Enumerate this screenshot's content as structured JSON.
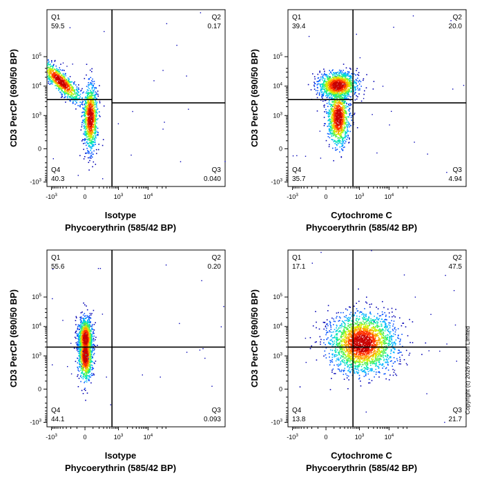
{
  "copyright": "Copyright (c) 2026 Abcam Limited",
  "colors": {
    "density": [
      "#0000b4",
      "#0050ff",
      "#00b4ff",
      "#00e6b4",
      "#50f050",
      "#d2f000",
      "#ffa000",
      "#ff3200",
      "#c80000"
    ]
  },
  "chart_data": [
    {
      "type": "scatter",
      "subtype": "flow-cytometry-density",
      "xlabel_line1": "Isotype",
      "xlabel_line2": "Phycoerythrin (585/42 BP)",
      "ylabel": "CD3 PerCP (690/50 BP)",
      "x_ticks": [
        "-10^3",
        "0",
        "10^3",
        "10^4"
      ],
      "y_ticks": [
        "10^5",
        "10^4",
        "10^3",
        "0",
        "-10^3"
      ],
      "gate": {
        "x": 600,
        "y_upper_left": 3500,
        "y_right": 2700
      },
      "quadrants": [
        {
          "name": "Q1",
          "value": "59.5"
        },
        {
          "name": "Q2",
          "value": "0.17"
        },
        {
          "name": "Q3",
          "value": "0.040"
        },
        {
          "name": "Q4",
          "value": "40.3"
        }
      ],
      "populations": [
        {
          "x": -500,
          "y": 15000,
          "sx": 0.35,
          "sy": 0.35,
          "rho": -0.85,
          "n": 900
        },
        {
          "x": 60,
          "y": 900,
          "sx": 0.12,
          "sy": 0.55,
          "rho": 0.0,
          "n": 1000
        }
      ]
    },
    {
      "type": "scatter",
      "subtype": "flow-cytometry-density",
      "xlabel_line1": "Cytochrome C",
      "xlabel_line2": "Phycoerythrin (585/42 BP)",
      "ylabel": "CD3 PerCP (690/50 BP)",
      "x_ticks": [
        "-10^3",
        "0",
        "10^3",
        "10^4"
      ],
      "y_ticks": [
        "10^5",
        "10^4",
        "10^3",
        "0",
        "-10^3"
      ],
      "gate": {
        "x": 600,
        "y_upper_left": 3500,
        "y_right": 2700
      },
      "quadrants": [
        {
          "name": "Q1",
          "value": "39.4"
        },
        {
          "name": "Q2",
          "value": "20.0"
        },
        {
          "name": "Q3",
          "value": "4.94"
        },
        {
          "name": "Q4",
          "value": "35.7"
        }
      ],
      "populations": [
        {
          "x": 150,
          "y": 11000,
          "sx": 0.32,
          "sy": 0.22,
          "rho": 0.0,
          "n": 1300
        },
        {
          "x": 160,
          "y": 900,
          "sx": 0.18,
          "sy": 0.5,
          "rho": 0.0,
          "n": 1100
        }
      ]
    },
    {
      "type": "scatter",
      "subtype": "flow-cytometry-density",
      "xlabel_line1": "Isotype",
      "xlabel_line2": "Phycoerythrin (585/42 BP)",
      "ylabel": "CD3 PerCP (690/50 BP)",
      "x_ticks": [
        "-10^3",
        "0",
        "10^3",
        "10^4"
      ],
      "y_ticks": [
        "10^5",
        "10^4",
        "10^3",
        "0",
        "-10^3"
      ],
      "gate": {
        "x": 600,
        "y_upper_left": 2000,
        "y_right": 2000
      },
      "quadrants": [
        {
          "name": "Q1",
          "value": "55.6"
        },
        {
          "name": "Q2",
          "value": "0.20"
        },
        {
          "name": "Q3",
          "value": "0.093"
        },
        {
          "name": "Q4",
          "value": "44.1"
        }
      ],
      "populations": [
        {
          "x": 0,
          "y": 4000,
          "sx": 0.12,
          "sy": 0.35,
          "rho": 0.0,
          "n": 1000
        },
        {
          "x": 0,
          "y": 1100,
          "sx": 0.12,
          "sy": 0.45,
          "rho": 0.0,
          "n": 900
        }
      ]
    },
    {
      "type": "scatter",
      "subtype": "flow-cytometry-density",
      "xlabel_line1": "Cytochrome C",
      "xlabel_line2": "Phycoerythrin (585/42 BP)",
      "ylabel": "CD3 PerCP (690/50 BP)",
      "x_ticks": [
        "-10^3",
        "0",
        "10^3",
        "10^4"
      ],
      "y_ticks": [
        "10^5",
        "10^4",
        "10^3",
        "0",
        "-10^3"
      ],
      "gate": {
        "x": 600,
        "y_upper_left": 2000,
        "y_right": 2000
      },
      "quadrants": [
        {
          "name": "Q1",
          "value": "17.1"
        },
        {
          "name": "Q2",
          "value": "47.5"
        },
        {
          "name": "Q3",
          "value": "21.7"
        },
        {
          "name": "Q4",
          "value": "13.8"
        }
      ],
      "populations": [
        {
          "x": 1200,
          "y": 2800,
          "sx": 0.55,
          "sy": 0.5,
          "rho": 0.0,
          "n": 2600
        }
      ]
    }
  ]
}
